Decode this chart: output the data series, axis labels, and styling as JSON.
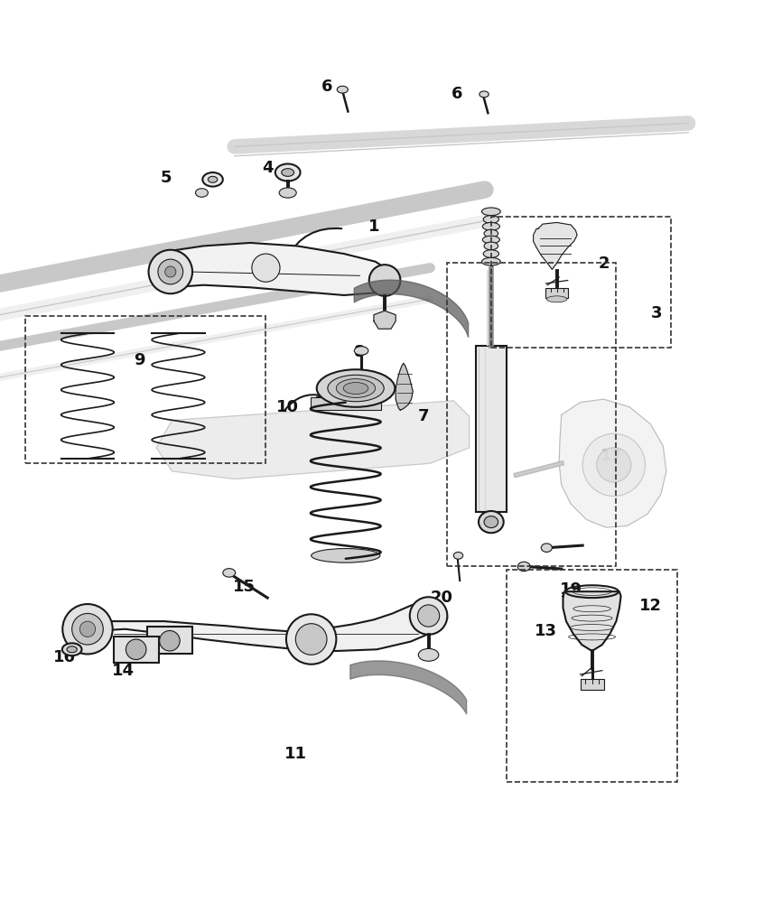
{
  "bg_color": "#ffffff",
  "line_color": "#1a1a1a",
  "light_gray": "#c8c8c8",
  "medium_gray": "#888888",
  "dashed_box_color": "#333333",
  "label_fontsize": 13,
  "fig_width": 8.66,
  "fig_height": 10.09,
  "dpi": 100
}
